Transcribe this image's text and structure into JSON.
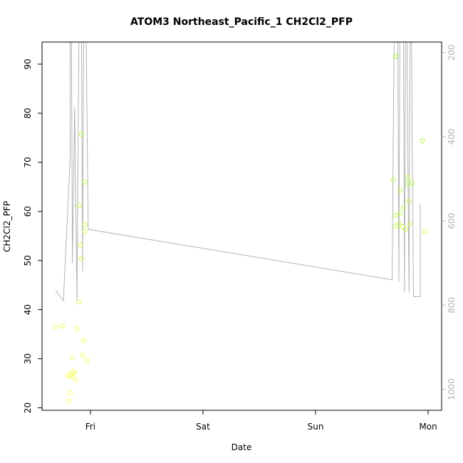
{
  "chart_data": {
    "type": "scatter",
    "title": "ATOM3 Northeast_Pacific_1 CH2Cl2_PFP",
    "xlabel": "Date",
    "ylabel": "CH2Cl2_PFP",
    "x_unit": "days relative to Fri 00:00",
    "xlim": [
      -0.43,
      3.12
    ],
    "ylim": [
      19.5,
      94.5
    ],
    "x_ticks": [
      {
        "value": 0,
        "label": "Fri"
      },
      {
        "value": 1,
        "label": "Sat"
      },
      {
        "value": 2,
        "label": "Sun"
      },
      {
        "value": 3,
        "label": "Mon"
      }
    ],
    "y_ticks": [
      20,
      30,
      40,
      50,
      60,
      70,
      80,
      90
    ],
    "right_axis": {
      "reversed": true,
      "lim": [
        175,
        1050
      ],
      "ticks": [
        200,
        400,
        600,
        800,
        1000
      ],
      "color": "#b3b3b3"
    },
    "colors": {
      "points_low": "#ffff66",
      "points_high": "#99ff33",
      "line": "#b3b3b3"
    },
    "series": [
      {
        "kind": "points",
        "points": [
          [
            -0.31,
            36.5
          ],
          [
            -0.25,
            36.7
          ],
          [
            -0.2,
            26.6
          ],
          [
            -0.19,
            21.4
          ],
          [
            -0.18,
            26.7
          ],
          [
            -0.18,
            23.1
          ],
          [
            -0.17,
            26.3
          ],
          [
            -0.16,
            30.2
          ],
          [
            -0.15,
            27.4
          ],
          [
            -0.14,
            27.1
          ],
          [
            -0.13,
            25.7
          ],
          [
            -0.12,
            36.1
          ],
          [
            -0.1,
            41.6
          ],
          [
            -0.1,
            61.2
          ],
          [
            -0.09,
            53.1
          ],
          [
            -0.08,
            50.4
          ],
          [
            -0.08,
            75.7
          ],
          [
            -0.07,
            30.7
          ],
          [
            -0.06,
            33.7
          ],
          [
            -0.05,
            66
          ],
          [
            -0.05,
            57.3
          ],
          [
            -0.05,
            55.9
          ],
          [
            -0.03,
            29.6
          ],
          [
            2.69,
            66.5
          ],
          [
            2.71,
            91.6
          ],
          [
            2.71,
            57
          ],
          [
            2.71,
            59.2
          ],
          [
            2.74,
            57.5
          ],
          [
            2.75,
            64.3
          ],
          [
            2.75,
            59.6
          ],
          [
            2.77,
            56.9
          ],
          [
            2.78,
            60.8
          ],
          [
            2.8,
            56.4
          ],
          [
            2.82,
            66.9
          ],
          [
            2.82,
            65.5
          ],
          [
            2.83,
            62.1
          ],
          [
            2.84,
            57.5
          ],
          [
            2.86,
            65.8
          ],
          [
            2.95,
            74.4
          ],
          [
            2.97,
            55.9
          ]
        ]
      },
      {
        "kind": "line",
        "axis": "right",
        "points": [
          [
            -0.31,
            765
          ],
          [
            -0.24,
            790
          ],
          [
            -0.18,
            450
          ],
          [
            -0.18,
            100
          ],
          [
            -0.17,
            100
          ],
          [
            -0.16,
            700
          ],
          [
            -0.14,
            330
          ],
          [
            -0.12,
            790
          ],
          [
            -0.1,
            100
          ],
          [
            -0.08,
            100
          ],
          [
            -0.07,
            720
          ],
          [
            -0.06,
            100
          ],
          [
            -0.04,
            100
          ],
          [
            -0.02,
            620
          ],
          [
            2.68,
            740
          ],
          [
            2.7,
            100
          ],
          [
            2.73,
            100
          ],
          [
            2.74,
            745
          ],
          [
            2.75,
            100
          ],
          [
            2.78,
            100
          ],
          [
            2.79,
            770
          ],
          [
            2.8,
            100
          ],
          [
            2.81,
            100
          ],
          [
            2.83,
            770
          ],
          [
            2.84,
            100
          ],
          [
            2.85,
            100
          ],
          [
            2.87,
            780
          ],
          [
            2.93,
            780
          ],
          [
            2.93,
            560
          ]
        ]
      }
    ]
  }
}
